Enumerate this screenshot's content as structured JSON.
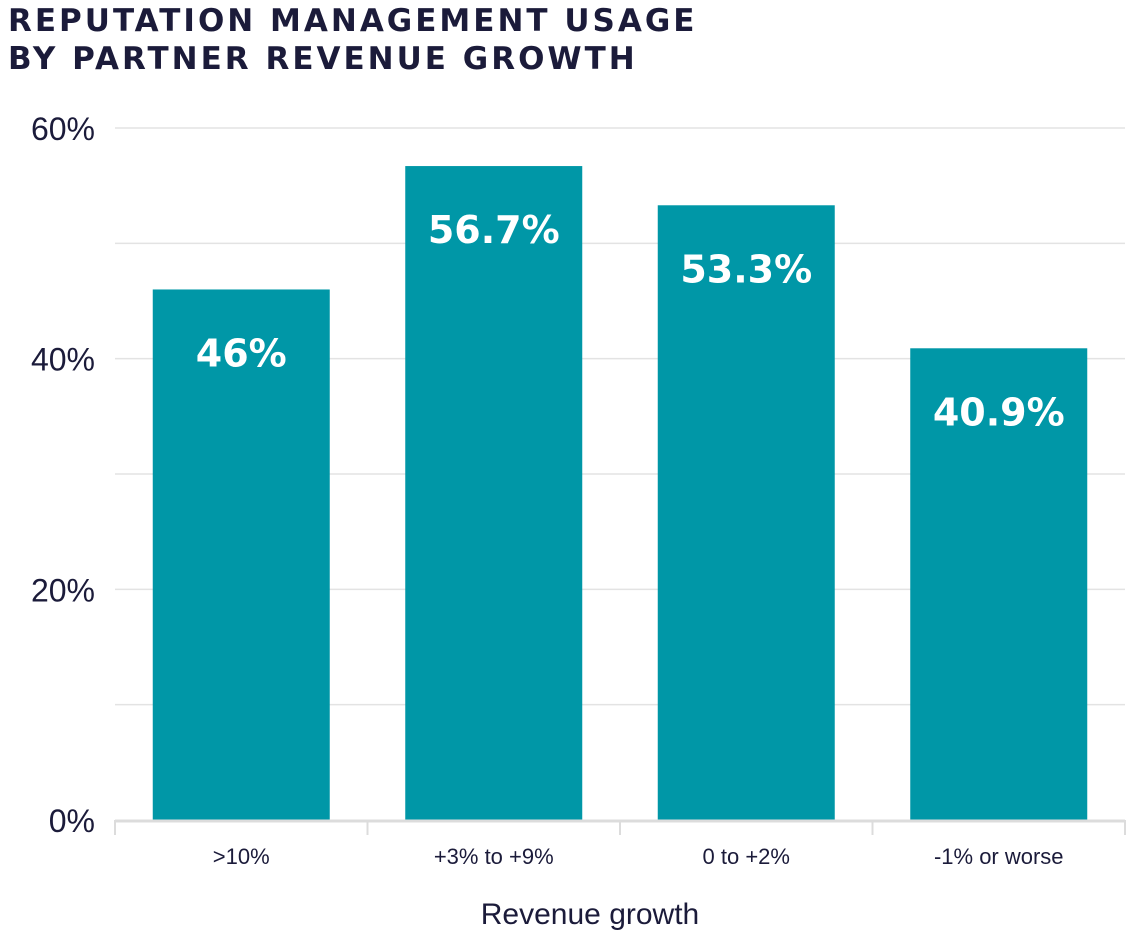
{
  "chart_data": {
    "type": "bar",
    "title_lines": [
      "REPUTATION MANAGEMENT USAGE",
      "BY PARTNER REVENUE GROWTH"
    ],
    "categories": [
      ">10%",
      "+3% to +9%",
      "0 to +2%",
      "-1% or worse"
    ],
    "values": [
      46,
      56.7,
      53.3,
      40.9
    ],
    "data_labels": [
      "46%",
      "56.7%",
      "53.3%",
      "40.9%"
    ],
    "xlabel": "Revenue growth",
    "ylabel": "",
    "ylim": [
      0,
      60
    ],
    "yticks": [
      0,
      20,
      40,
      60
    ],
    "ytick_labels": [
      "0%",
      "20%",
      "40%",
      "60%"
    ],
    "minor_gridlines": [
      10,
      30,
      50
    ],
    "grid": true,
    "colors": {
      "bar": "#0097a7",
      "label": "#ffffff",
      "text": "#1b1b3a",
      "grid": "#e3e3e3"
    }
  }
}
